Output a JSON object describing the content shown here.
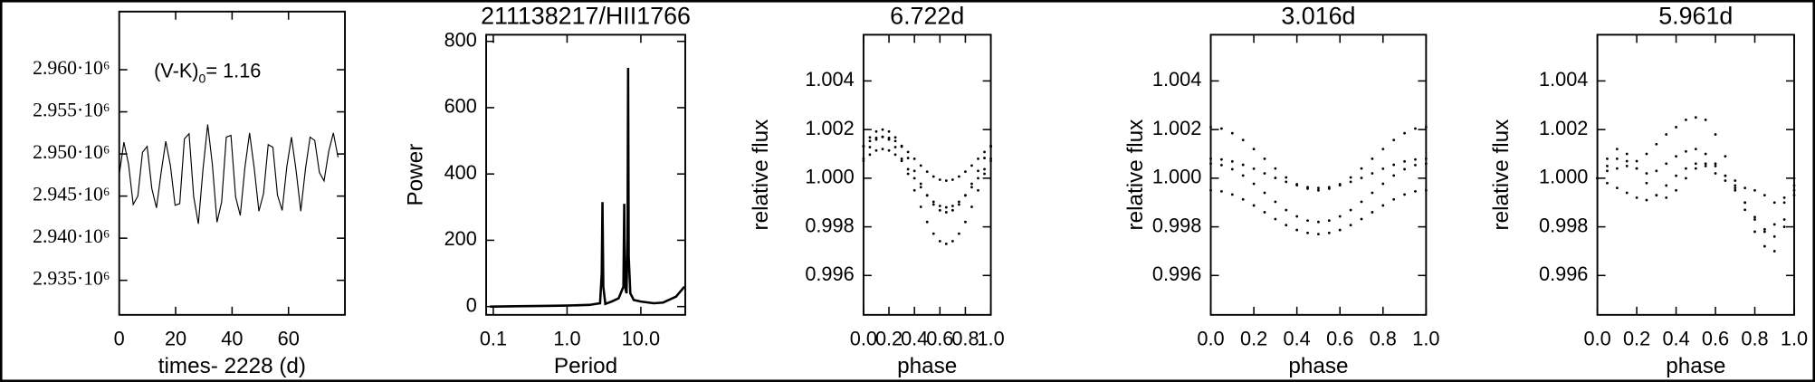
{
  "chart_data": [
    {
      "type": "line",
      "color": "#000000",
      "xlabel": "times- 2228 (d)",
      "annotation": [
        "(V-K)",
        "0",
        "= 1.16"
      ],
      "x": [
        0,
        1.65,
        3.3,
        4.95,
        6.6,
        8.25,
        9.9,
        11.55,
        13.2,
        14.85,
        16.5,
        18.15,
        19.8,
        21.45,
        23.1,
        24.75,
        26.4,
        28.05,
        29.7,
        31.35,
        33,
        34.65,
        36.3,
        37.95,
        39.6,
        41.25,
        42.9,
        44.55,
        46.2,
        47.85,
        49.5,
        51.15,
        52.8,
        54.45,
        56.1,
        57.75,
        59.4,
        61.05,
        62.7,
        64.35,
        66,
        67.65,
        69.3,
        70.95,
        72.6,
        74.25,
        75.9,
        77.55
      ],
      "values": [
        2947500,
        2951400,
        2948800,
        2944000,
        2945000,
        2950200,
        2950900,
        2945900,
        2943600,
        2947800,
        2951500,
        2948600,
        2943900,
        2944100,
        2951800,
        2952400,
        2944900,
        2941700,
        2948200,
        2953500,
        2948800,
        2941900,
        2944300,
        2952000,
        2952200,
        2944900,
        2942700,
        2948400,
        2952500,
        2948300,
        2943200,
        2945300,
        2951100,
        2950800,
        2945100,
        2943300,
        2948500,
        2952000,
        2948000,
        2943200,
        2948200,
        2952000,
        2951600,
        2947800,
        2946800,
        2950300,
        2952500,
        2949600
      ],
      "xlim": [
        0,
        80
      ],
      "xticks": [
        0,
        20,
        40,
        60
      ],
      "ylim": [
        2930900,
        2966900
      ],
      "yticks": [
        {
          "value": 2935000,
          "label": "2.935·10⁶"
        },
        {
          "value": 2940000,
          "label": "2.940·10⁶"
        },
        {
          "value": 2945000,
          "label": "2.945·10⁶"
        },
        {
          "value": 2950000,
          "label": "2.950·10⁶"
        },
        {
          "value": 2955000,
          "label": "2.955·10⁶"
        },
        {
          "value": 2960000,
          "label": "2.960·10⁶"
        }
      ]
    },
    {
      "type": "line",
      "color": "#000000",
      "title": "211138217/HII1766",
      "xlabel": "Period",
      "ylabel": "Power",
      "xscale": "log",
      "x": [
        0.09,
        0.1,
        0.2,
        0.5,
        1,
        2,
        2.8,
        2.95,
        3.02,
        3.1,
        3.3,
        4,
        5,
        5.8,
        5.96,
        6.1,
        6.4,
        6.6,
        6.72,
        6.85,
        7.2,
        8,
        10,
        15,
        20,
        30,
        39
      ],
      "values": [
        0,
        0,
        1,
        2,
        3,
        5,
        10,
        100,
        315,
        60,
        8,
        15,
        25,
        60,
        310,
        60,
        40,
        200,
        720,
        150,
        40,
        20,
        15,
        10,
        12,
        30,
        60
      ],
      "xlim": [
        0.08,
        40
      ],
      "xticks": [
        0.1,
        {
          "value": 1,
          "label": "1.0"
        },
        {
          "value": 10,
          "label": "10.0"
        }
      ],
      "ylim": [
        -25,
        820
      ],
      "yticks": [
        0,
        200,
        400,
        600,
        800
      ]
    },
    {
      "type": "scatter",
      "title": "6.722d",
      "xlabel": "phase",
      "ylabel": "relative flux",
      "x": [
        0,
        0.05,
        0.1,
        0.15,
        0.2,
        0.25,
        0.3,
        0.35,
        0.4,
        0.45,
        0.5,
        0.55,
        0.6,
        0.65,
        0.7,
        0.75,
        0.8,
        0.85,
        0.9,
        0.95,
        1
      ],
      "series": [
        {
          "color": "#000000",
          "values": [
            1.0013,
            1.00168,
            1.00192,
            1.002,
            1.00192,
            1.00168,
            1.0013,
            1.00083,
            1.0003,
            0.99977,
            0.9993,
            0.99892,
            0.99868,
            0.9986,
            0.99868,
            0.99892,
            0.9993,
            0.99977,
            1.0003,
            1.00083,
            1.0013
          ]
        },
        {
          "color": "#000000",
          "values": [
            1.00071,
            1.00097,
            1.00114,
            1.0012,
            1.00114,
            1.00097,
            1.00071,
            1.00037,
            1,
            0.99963,
            0.99929,
            0.99903,
            0.99886,
            0.9988,
            0.99886,
            0.99903,
            0.99929,
            0.99963,
            1,
            1.00037,
            1.00071
          ]
        },
        {
          "color": "#000000",
          "values": [
            1.0008,
            1.00128,
            1.00159,
            1.0017,
            1.00159,
            1.00128,
            1.0008,
            1.00018,
            0.9995,
            0.99882,
            0.9982,
            0.99772,
            0.99741,
            0.9973,
            0.99741,
            0.99772,
            0.9982,
            0.99882,
            0.9995,
            1.00018,
            1.0008
          ]
        },
        {
          "color": "#000000",
          "values": [
            1.00133,
            1.00153,
            1.00166,
            1.0017,
            1.00166,
            1.00153,
            1.00133,
            1.00108,
            1.0008,
            1.00052,
            1.00027,
            1.00007,
            0.99994,
            0.9999,
            0.99994,
            1.00007,
            1.00027,
            1.00052,
            1.0008,
            1.00108,
            1.00133
          ]
        }
      ],
      "xlim": [
        0,
        1
      ],
      "xticks": [
        {
          "value": 0,
          "label": "0.0"
        },
        0.2,
        0.4,
        0.6,
        0.8,
        {
          "value": 1,
          "label": "1.0"
        }
      ],
      "ylim": [
        0.99438,
        1.0059
      ],
      "yticks": [
        0.996,
        0.998,
        {
          "value": 1,
          "label": "1.000"
        },
        1.002,
        1.004
      ]
    },
    {
      "type": "scatter",
      "title": "3.016d",
      "xlabel": "phase",
      "ylabel": "relative flux",
      "x": [
        0,
        0.05,
        0.1,
        0.15,
        0.2,
        0.25,
        0.3,
        0.35,
        0.4,
        0.45,
        0.5,
        0.55,
        0.6,
        0.65,
        0.7,
        0.75,
        0.8,
        0.85,
        0.9,
        0.95,
        1
      ],
      "series": [
        {
          "color": "#000000",
          "values": [
            1.0021,
            1.00204,
            1.00185,
            1.00157,
            1.0012,
            1.0008,
            1.0004,
            1.00003,
            0.99975,
            0.99957,
            0.9995,
            0.99957,
            0.99975,
            1.00003,
            1.0004,
            1.0008,
            1.0012,
            1.00157,
            1.00185,
            1.00204,
            1.0021
          ]
        },
        {
          "color": "#000000",
          "values": [
            1.0008,
            1.00077,
            1.00069,
            1.00055,
            1.00039,
            1.0002,
            1.00001,
            0.99985,
            0.99971,
            0.99963,
            0.9996,
            0.99963,
            0.99971,
            0.99985,
            1.00001,
            1.0002,
            1.00039,
            1.00055,
            1.00069,
            1.00077,
            1.0008
          ]
        },
        {
          "color": "#000000",
          "values": [
            1.0006,
            1.00054,
            1.00037,
            1.00011,
            0.99977,
            0.9994,
            0.99903,
            0.99869,
            0.99843,
            0.99826,
            0.9982,
            0.99826,
            0.99843,
            0.99869,
            0.99903,
            0.9994,
            0.99977,
            1.00011,
            1.00037,
            1.00054,
            1.0006
          ]
        },
        {
          "color": "#000000",
          "values": [
            0.9995,
            0.99946,
            0.99933,
            0.99913,
            0.99888,
            0.9986,
            0.99832,
            0.99807,
            0.99787,
            0.99775,
            0.9977,
            0.99775,
            0.99787,
            0.99807,
            0.99832,
            0.9986,
            0.99888,
            0.99913,
            0.99933,
            0.99946,
            0.9995
          ]
        }
      ],
      "xlim": [
        0,
        1
      ],
      "xticks": [
        {
          "value": 0,
          "label": "0.0"
        },
        0.2,
        0.4,
        0.6,
        0.8,
        {
          "value": 1,
          "label": "1.0"
        }
      ],
      "ylim": [
        0.99438,
        1.0059
      ],
      "yticks": [
        0.996,
        0.998,
        {
          "value": 1,
          "label": "1.000"
        },
        1.002,
        1.004
      ]
    },
    {
      "type": "scatter",
      "title": "5.961d",
      "xlabel": "phase",
      "ylabel": "relative flux",
      "x": [
        0,
        0.05,
        0.1,
        0.15,
        0.2,
        0.25,
        0.3,
        0.35,
        0.4,
        0.45,
        0.5,
        0.55,
        0.6,
        0.65,
        0.7,
        0.75,
        0.8,
        0.85,
        0.9,
        0.95,
        1
      ],
      "series": [
        {
          "color": "#000000",
          "values": [
            1,
            1.0003,
            1.0004,
            1.0005,
            1.0007,
            1.001,
            1.0014,
            1.0018,
            1.0021,
            1.0024,
            1.0025,
            1.0024,
            1.0018,
            1.0009,
            0.9999,
            0.999,
            0.9983,
            0.9979,
            0.9981,
            0.999,
            1
          ]
        },
        {
          "color": "#000000",
          "values": [
            1,
            1.0005,
            1.0008,
            1.0007,
            1.0004,
            1.0002,
            1.0003,
            1.0006,
            1.0009,
            1.0011,
            1.0012,
            1.001,
            1.0006,
            1.0001,
            0.9996,
            0.999,
            0.9984,
            0.9978,
            0.9976,
            0.9983,
            0.9995
          ]
        },
        {
          "color": "#000000",
          "values": [
            1,
            1.0008,
            1.0012,
            1.001,
            1.0004,
            0.9998,
            0.9993,
            0.9992,
            0.9995,
            1,
            1.0004,
            1.0006,
            1.0005,
            1.0001,
            0.9995,
            0.9987,
            0.9978,
            0.9972,
            0.997,
            0.998,
            0.9993
          ]
        },
        {
          "color": "#000000",
          "values": [
            1,
            0.9998,
            0.9996,
            0.9994,
            0.9992,
            0.9991,
            0.9993,
            0.9997,
            1.0001,
            1.0004,
            1.0006,
            1.0005,
            1.0002,
            0.9999,
            0.9997,
            0.9996,
            0.9995,
            0.9993,
            0.999,
            0.9992,
            0.9997
          ]
        }
      ],
      "xlim": [
        0,
        1
      ],
      "xticks": [
        {
          "value": 0,
          "label": "0.0"
        },
        0.2,
        0.4,
        0.6,
        0.8,
        {
          "value": 1,
          "label": "1.0"
        }
      ],
      "ylim": [
        0.99438,
        1.0059
      ],
      "yticks": [
        0.996,
        0.998,
        {
          "value": 1,
          "label": "1.000"
        },
        1.002,
        1.004
      ]
    }
  ]
}
